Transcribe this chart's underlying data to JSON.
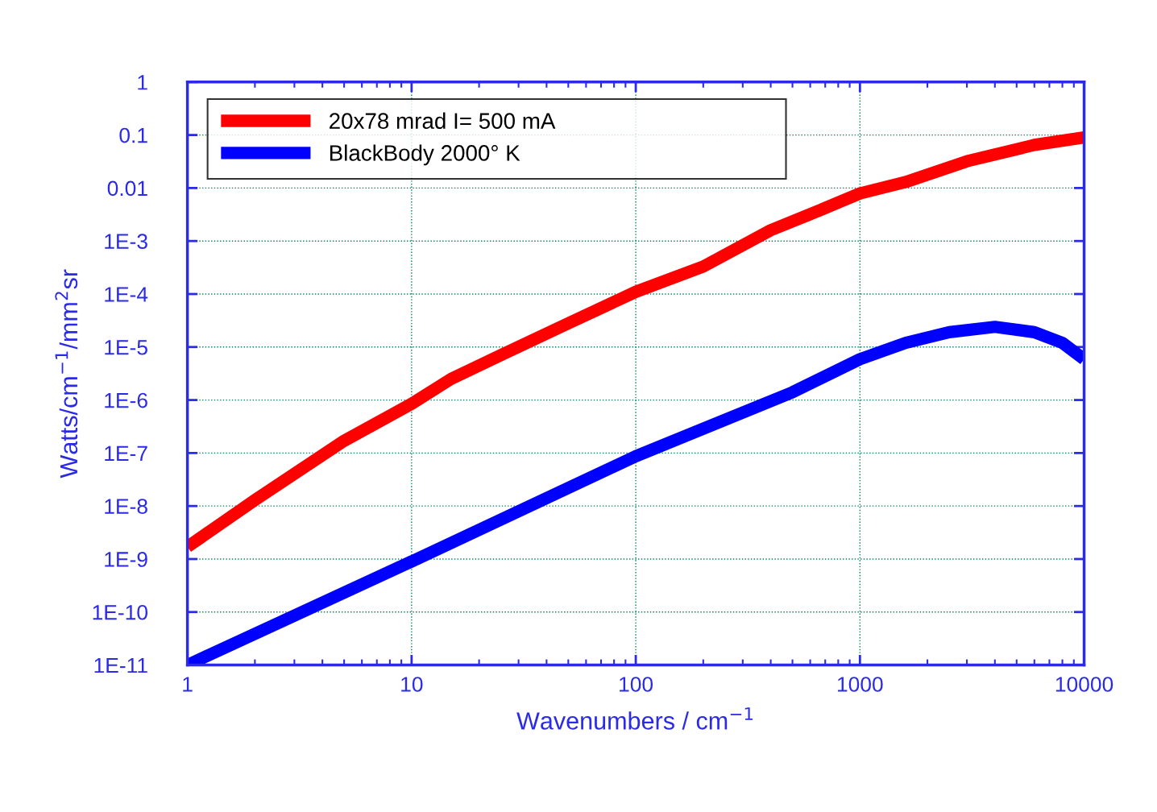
{
  "chart_data": {
    "type": "line",
    "xlabel": "Wavenumbers / cm$^{−1}$",
    "ylabel": "Watts/cm$^{−1}$/mm$^{2}$sr",
    "series": [
      {
        "name": "20x78 mrad I= 500 mA",
        "color": "#ff0000",
        "x": [
          1,
          2,
          5,
          10,
          15,
          25,
          50,
          100,
          200,
          400,
          600,
          1000,
          1600,
          3000,
          6000,
          10000
        ],
        "values": [
          1.7e-09,
          1.3e-08,
          1.7e-07,
          8.5e-07,
          2.5e-06,
          7e-06,
          2.8e-05,
          0.00011,
          0.00033,
          0.0016,
          0.0032,
          0.0079,
          0.013,
          0.032,
          0.065,
          0.09
        ]
      },
      {
        "name": "BlackBody 2000° K",
        "color": "#0000ff",
        "x": [
          1,
          10,
          100,
          500,
          1000,
          1600,
          2500,
          4000,
          6000,
          8000,
          10000
        ],
        "values": [
          1e-11,
          9e-10,
          8.7e-08,
          1.4e-06,
          5.9e-06,
          1.2e-05,
          1.9e-05,
          2.4e-05,
          1.9e-05,
          1.2e-05,
          5.9e-06
        ]
      }
    ],
    "log": "xy",
    "xlim": [
      1,
      10000
    ],
    "xticks": [
      1,
      10,
      100,
      1000,
      10000
    ],
    "ylim": [
      1e-11,
      1
    ],
    "yticks": [
      {
        "value": 1e-11,
        "label": "1E-11"
      },
      {
        "value": 1e-10,
        "label": "1E-10"
      },
      {
        "value": 1e-09,
        "label": "1E-9"
      },
      {
        "value": 1e-08,
        "label": "1E-8"
      },
      {
        "value": 1e-07,
        "label": "1E-7"
      },
      {
        "value": 1e-06,
        "label": "1E-6"
      },
      {
        "value": 1e-05,
        "label": "1E-5"
      },
      {
        "value": 0.0001,
        "label": "1E-4"
      },
      {
        "value": 0.001,
        "label": "1E-3"
      },
      {
        "value": 0.01,
        "label": "0.01"
      },
      {
        "value": 0.1,
        "label": "0.1"
      },
      {
        "value": 1,
        "label": "1"
      }
    ],
    "grid": true,
    "legend": "top left",
    "line_style": "solid",
    "marker": "none"
  }
}
